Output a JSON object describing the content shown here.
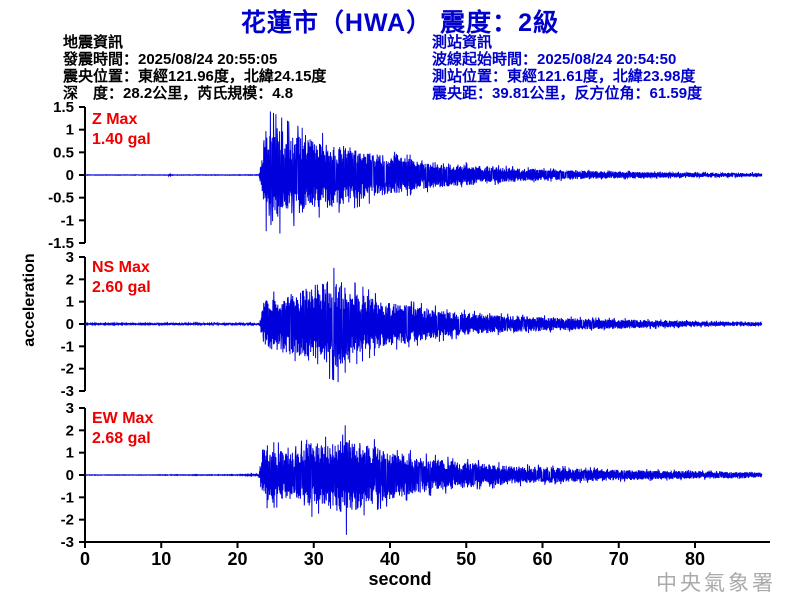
{
  "title": "花蓮市（HWA） 震度：2級",
  "quake_info": {
    "heading": "地震資訊",
    "lines": [
      "發震時間：2025/08/24 20:55:05",
      "震央位置：東經121.96度，北緯24.15度",
      "深　度：28.2公里，芮氏規模：4.8"
    ]
  },
  "station_info": {
    "heading": "測站資訊",
    "lines": [
      "波線起始時間：2025/08/24 20:54:50",
      "測站位置：東經121.61度，北緯23.98度",
      "震央距：39.81公里，反方位角：61.59度"
    ]
  },
  "agency": "中央氣象署",
  "chart_data": {
    "type": "line",
    "xlabel": "second",
    "ylabel": "acceleration",
    "y_unit": "gal",
    "line_color": "#0000dd",
    "axis_color": "#000000",
    "x_ticks": [
      0,
      10,
      20,
      30,
      40,
      50,
      60,
      70,
      80
    ],
    "x_range": [
      0,
      89.8
    ],
    "trace_end_s": 88.8,
    "onset_s": 22.9,
    "subplots": [
      {
        "id": "Z",
        "label": "Z Max",
        "max_label": "1.40 gal",
        "max_gal": 1.4,
        "peak": {
          "t": 24.3,
          "value": 1.4
        },
        "ylim": [
          -1.5,
          1.5
        ],
        "yticks": [
          1.5,
          1,
          0.5,
          0,
          -0.5,
          -1,
          -1.5
        ],
        "envelope": [
          [
            0,
            0.005
          ],
          [
            10.9,
            0.005
          ],
          [
            11.05,
            0.05
          ],
          [
            11.3,
            0.006
          ],
          [
            22.8,
            0.006
          ],
          [
            23.1,
            0.35
          ],
          [
            23.6,
            1.2
          ],
          [
            24.4,
            1.4
          ],
          [
            26.5,
            1.2
          ],
          [
            29,
            1.0
          ],
          [
            32,
            0.9
          ],
          [
            35,
            0.75
          ],
          [
            38,
            0.6
          ],
          [
            41,
            0.5
          ],
          [
            45,
            0.38
          ],
          [
            49,
            0.3
          ],
          [
            53,
            0.23
          ],
          [
            58,
            0.17
          ],
          [
            63,
            0.13
          ],
          [
            69,
            0.1
          ],
          [
            76,
            0.075
          ],
          [
            83,
            0.06
          ],
          [
            88.8,
            0.05
          ]
        ]
      },
      {
        "id": "NS",
        "label": "NS Max",
        "max_label": "2.60 gal",
        "max_gal": 2.6,
        "peak": {
          "t": 33.2,
          "value": -2.6
        },
        "ylim": [
          -3,
          3
        ],
        "yticks": [
          3,
          2,
          1,
          0,
          -1,
          -2,
          -3
        ],
        "envelope": [
          [
            0,
            0.03
          ],
          [
            9,
            0.035
          ],
          [
            12,
            0.06
          ],
          [
            15,
            0.05
          ],
          [
            19,
            0.06
          ],
          [
            22.9,
            0.07
          ],
          [
            23.4,
            1.3
          ],
          [
            26,
            1.6
          ],
          [
            28.5,
            1.9
          ],
          [
            30.5,
            2.3
          ],
          [
            33,
            2.55
          ],
          [
            35,
            1.9
          ],
          [
            37.5,
            1.5
          ],
          [
            40,
            1.2
          ],
          [
            44,
            0.95
          ],
          [
            48,
            0.7
          ],
          [
            52,
            0.55
          ],
          [
            56,
            0.45
          ],
          [
            61,
            0.38
          ],
          [
            66,
            0.3
          ],
          [
            71,
            0.26
          ],
          [
            76,
            0.2
          ],
          [
            81,
            0.16
          ],
          [
            85,
            0.12
          ],
          [
            88.8,
            0.1
          ]
        ]
      },
      {
        "id": "EW",
        "label": "EW Max",
        "max_label": "2.68 gal",
        "max_gal": 2.68,
        "peak": {
          "t": 34.3,
          "value": -2.68
        },
        "ylim": [
          -3,
          3
        ],
        "yticks": [
          3,
          2,
          1,
          0,
          -1,
          -2,
          -3
        ],
        "envelope": [
          [
            0,
            0.012
          ],
          [
            20,
            0.018
          ],
          [
            22.8,
            0.05
          ],
          [
            23.3,
            1.5
          ],
          [
            25.5,
            1.45
          ],
          [
            27.5,
            1.25
          ],
          [
            29.5,
            1.9
          ],
          [
            31.5,
            1.7
          ],
          [
            33.5,
            2.1
          ],
          [
            34.5,
            2.3
          ],
          [
            36,
            1.9
          ],
          [
            38,
            1.6
          ],
          [
            40.5,
            1.3
          ],
          [
            44,
            1.0
          ],
          [
            48,
            0.8
          ],
          [
            52,
            0.65
          ],
          [
            56,
            0.52
          ],
          [
            60,
            0.45
          ],
          [
            65,
            0.36
          ],
          [
            70,
            0.3
          ],
          [
            75,
            0.26
          ],
          [
            80,
            0.22
          ],
          [
            85,
            0.18
          ],
          [
            88.8,
            0.14
          ]
        ]
      }
    ]
  }
}
